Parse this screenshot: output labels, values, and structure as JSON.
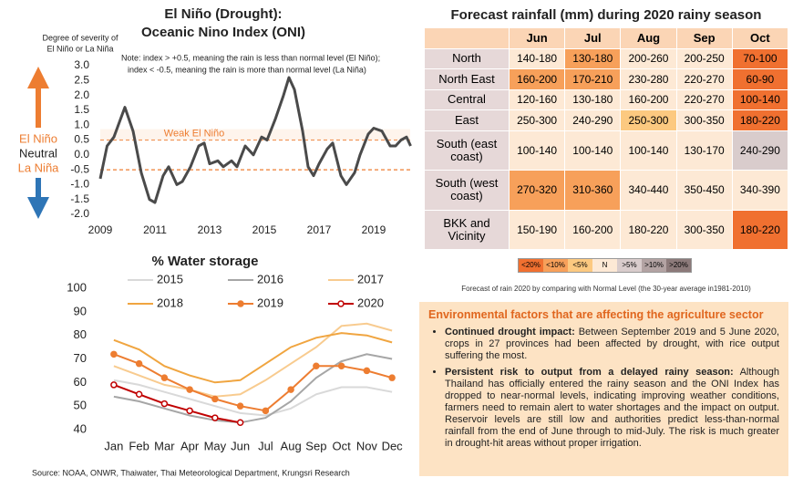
{
  "chart_data": [
    {
      "type": "line",
      "title": "El Niño (Drought):",
      "subtitle": "Oceanic Nino Index (ONI)",
      "y_axis_note": [
        "Degree of severity of",
        "El Niño or La Niña"
      ],
      "side_labels": [
        "El Niño",
        "Neutral",
        "La Niña"
      ],
      "note": [
        "Note: index > +0.5, meaning the rain is less than normal level (El Niño);",
        "index < -0.5, meaning the rain is more than normal level (La Niña)"
      ],
      "reference_lines": [
        {
          "value": 0.5,
          "label": "Weak El Niño"
        },
        {
          "value": -0.5
        }
      ],
      "xlim": [
        2009,
        2020.5
      ],
      "xticks": [
        2009,
        2011,
        2013,
        2015,
        2017,
        2019
      ],
      "ylim": [
        -2.0,
        3.0
      ],
      "yticks": [
        {
          "value": -2,
          "label": "-2.0"
        },
        {
          "value": -1.5,
          "label": "-1.5"
        },
        {
          "value": -1,
          "label": "-1.0"
        },
        {
          "value": -0.5,
          "label": "-0.5"
        },
        {
          "value": 0,
          "label": "0.0"
        },
        {
          "value": 0.5,
          "label": "0.5"
        },
        {
          "value": 1,
          "label": "1.0"
        },
        {
          "value": 1.5,
          "label": "1.5"
        },
        {
          "value": 2,
          "label": "2.0"
        },
        {
          "value": 2.5,
          "label": "2.5"
        },
        {
          "value": 3,
          "label": "3.0"
        }
      ],
      "x": [
        2009.0,
        2009.25,
        2009.5,
        2009.7,
        2009.9,
        2010.2,
        2010.5,
        2010.8,
        2011.0,
        2011.3,
        2011.5,
        2011.8,
        2012.0,
        2012.3,
        2012.6,
        2012.8,
        2013.0,
        2013.3,
        2013.5,
        2013.8,
        2014.0,
        2014.3,
        2014.6,
        2014.9,
        2015.1,
        2015.4,
        2015.7,
        2015.9,
        2016.1,
        2016.4,
        2016.6,
        2016.8,
        2017.0,
        2017.3,
        2017.5,
        2017.8,
        2018.0,
        2018.3,
        2018.5,
        2018.8,
        2019.0,
        2019.3,
        2019.6,
        2019.8,
        2020.0,
        2020.2,
        2020.35
      ],
      "values": [
        -0.8,
        0.3,
        0.6,
        1.1,
        1.6,
        0.8,
        -0.6,
        -1.5,
        -1.6,
        -0.7,
        -0.4,
        -1.0,
        -0.9,
        -0.4,
        0.3,
        0.4,
        -0.3,
        -0.2,
        -0.4,
        -0.2,
        -0.4,
        0.3,
        0.0,
        0.6,
        0.5,
        1.2,
        2.0,
        2.6,
        2.2,
        0.8,
        -0.4,
        -0.7,
        -0.3,
        0.2,
        0.4,
        -0.7,
        -1.0,
        -0.6,
        0.0,
        0.7,
        0.9,
        0.8,
        0.3,
        0.3,
        0.5,
        0.6,
        0.3
      ],
      "color": "#4a4a4a"
    },
    {
      "type": "line",
      "title": "% Water storage",
      "categories": [
        "Jan",
        "Feb",
        "Mar",
        "Apr",
        "May",
        "Jun",
        "Jul",
        "Aug",
        "Sep",
        "Oct",
        "Nov",
        "Dec"
      ],
      "ylim": [
        40,
        100
      ],
      "yticks": [
        40,
        50,
        60,
        70,
        80,
        90,
        100
      ],
      "series": [
        {
          "name": "2015",
          "color": "#d9d9d9",
          "marker": "none",
          "values": [
            61,
            59,
            56,
            53,
            50,
            47,
            46,
            49,
            55,
            58,
            58,
            56
          ]
        },
        {
          "name": "2016",
          "color": "#a6a6a6",
          "marker": "none",
          "values": [
            54,
            52,
            49,
            46,
            44,
            43,
            45,
            52,
            62,
            69,
            72,
            70
          ]
        },
        {
          "name": "2017",
          "color": "#f8cb8f",
          "marker": "none",
          "values": [
            67,
            63,
            59,
            57,
            54,
            55,
            61,
            68,
            75,
            84,
            85,
            82
          ]
        },
        {
          "name": "2018",
          "color": "#f0a540",
          "marker": "none",
          "values": [
            78,
            74,
            67,
            63,
            60,
            61,
            68,
            75,
            79,
            81,
            80,
            77
          ]
        },
        {
          "name": "2019",
          "color": "#ed7d31",
          "marker": "filled",
          "values": [
            72,
            68,
            62,
            57,
            53,
            50,
            48,
            57,
            67,
            67,
            65,
            62
          ]
        },
        {
          "name": "2020",
          "color": "#c00000",
          "marker": "open",
          "values": [
            59,
            55,
            51,
            48,
            45,
            43,
            null,
            null,
            null,
            null,
            null,
            null
          ]
        }
      ]
    }
  ],
  "table": {
    "title": "Forecast rainfall (mm) during 2020 rainy season",
    "columns": [
      "Jun",
      "Jul",
      "Aug",
      "Sep",
      "Oct"
    ],
    "rows": [
      {
        "label": "North",
        "cells": [
          "140-180",
          "130-180",
          "200-260",
          "200-250",
          "70-100"
        ],
        "colors": [
          "#fde9d5",
          "#f7a05a",
          "#fde9d5",
          "#fde9d5",
          "#f07030"
        ]
      },
      {
        "label": "North East",
        "cells": [
          "160-200",
          "170-210",
          "230-280",
          "220-270",
          "60-90"
        ],
        "colors": [
          "#f7a05a",
          "#f7a05a",
          "#fde9d5",
          "#fde9d5",
          "#f07030"
        ]
      },
      {
        "label": "Central",
        "cells": [
          "120-160",
          "130-180",
          "160-200",
          "220-270",
          "100-140"
        ],
        "colors": [
          "#fde9d5",
          "#fde9d5",
          "#fde9d5",
          "#fde9d5",
          "#f07030"
        ]
      },
      {
        "label": "East",
        "cells": [
          "250-300",
          "240-290",
          "250-300",
          "300-350",
          "180-220"
        ],
        "colors": [
          "#fde9d5",
          "#fde9d5",
          "#fcc980",
          "#fde9d5",
          "#f07030"
        ]
      },
      {
        "label": "South (east coast)",
        "cells": [
          "100-140",
          "100-140",
          "100-140",
          "130-170",
          "240-290"
        ],
        "colors": [
          "#fde9d5",
          "#fde9d5",
          "#fde9d5",
          "#fde9d5",
          "#d9cccc"
        ]
      },
      {
        "label": "South (west coast)",
        "cells": [
          "270-320",
          "310-360",
          "340-440",
          "350-450",
          "340-390"
        ],
        "colors": [
          "#f7a05a",
          "#f7a05a",
          "#fde9d5",
          "#fde9d5",
          "#fde9d5"
        ]
      },
      {
        "label": "BKK and Vicinity",
        "cells": [
          "150-190",
          "160-200",
          "180-220",
          "300-350",
          "180-220"
        ],
        "colors": [
          "#fde9d5",
          "#fde9d5",
          "#fde9d5",
          "#fde9d5",
          "#f07030"
        ]
      }
    ],
    "legend": [
      {
        "label": "<20%",
        "color": "#f07030"
      },
      {
        "label": "<10%",
        "color": "#f7a05a"
      },
      {
        "label": "<5%",
        "color": "#fcc980"
      },
      {
        "label": "N",
        "color": "#fde9d5"
      },
      {
        "label": ">5%",
        "color": "#d9cccc"
      },
      {
        "label": ">10%",
        "color": "#b3a3a3"
      },
      {
        "label": ">20%",
        "color": "#8c7a7a"
      }
    ],
    "caption": "Forecast of rain 2020 by comparing with Normal Level (the 30-year average in1981-2010)"
  },
  "factors": {
    "title": "Environmental factors that are affecting the agriculture sector",
    "bullets": [
      {
        "lead": "Continued drought impact:",
        "text": " Between September 2019 and 5 June 2020, crops in 27 provinces had been affected by drought, with rice output suffering the most."
      },
      {
        "lead": "Persistent risk to output from a delayed rainy season:",
        "text": " Although Thailand has officially entered the rainy season and the ONI Index has dropped to near-normal levels, indicating improving weather conditions, farmers need to remain alert to water shortages and the impact on output. Reservoir levels are still low and authorities predict less-than-normal rainfall from the end of June through to mid-July. The risk is much greater in drought-hit areas without proper irrigation."
      }
    ]
  },
  "source": "Source: NOAA, ONWR, Thaiwater, Thai Meteorological Department, Krungsri Research"
}
